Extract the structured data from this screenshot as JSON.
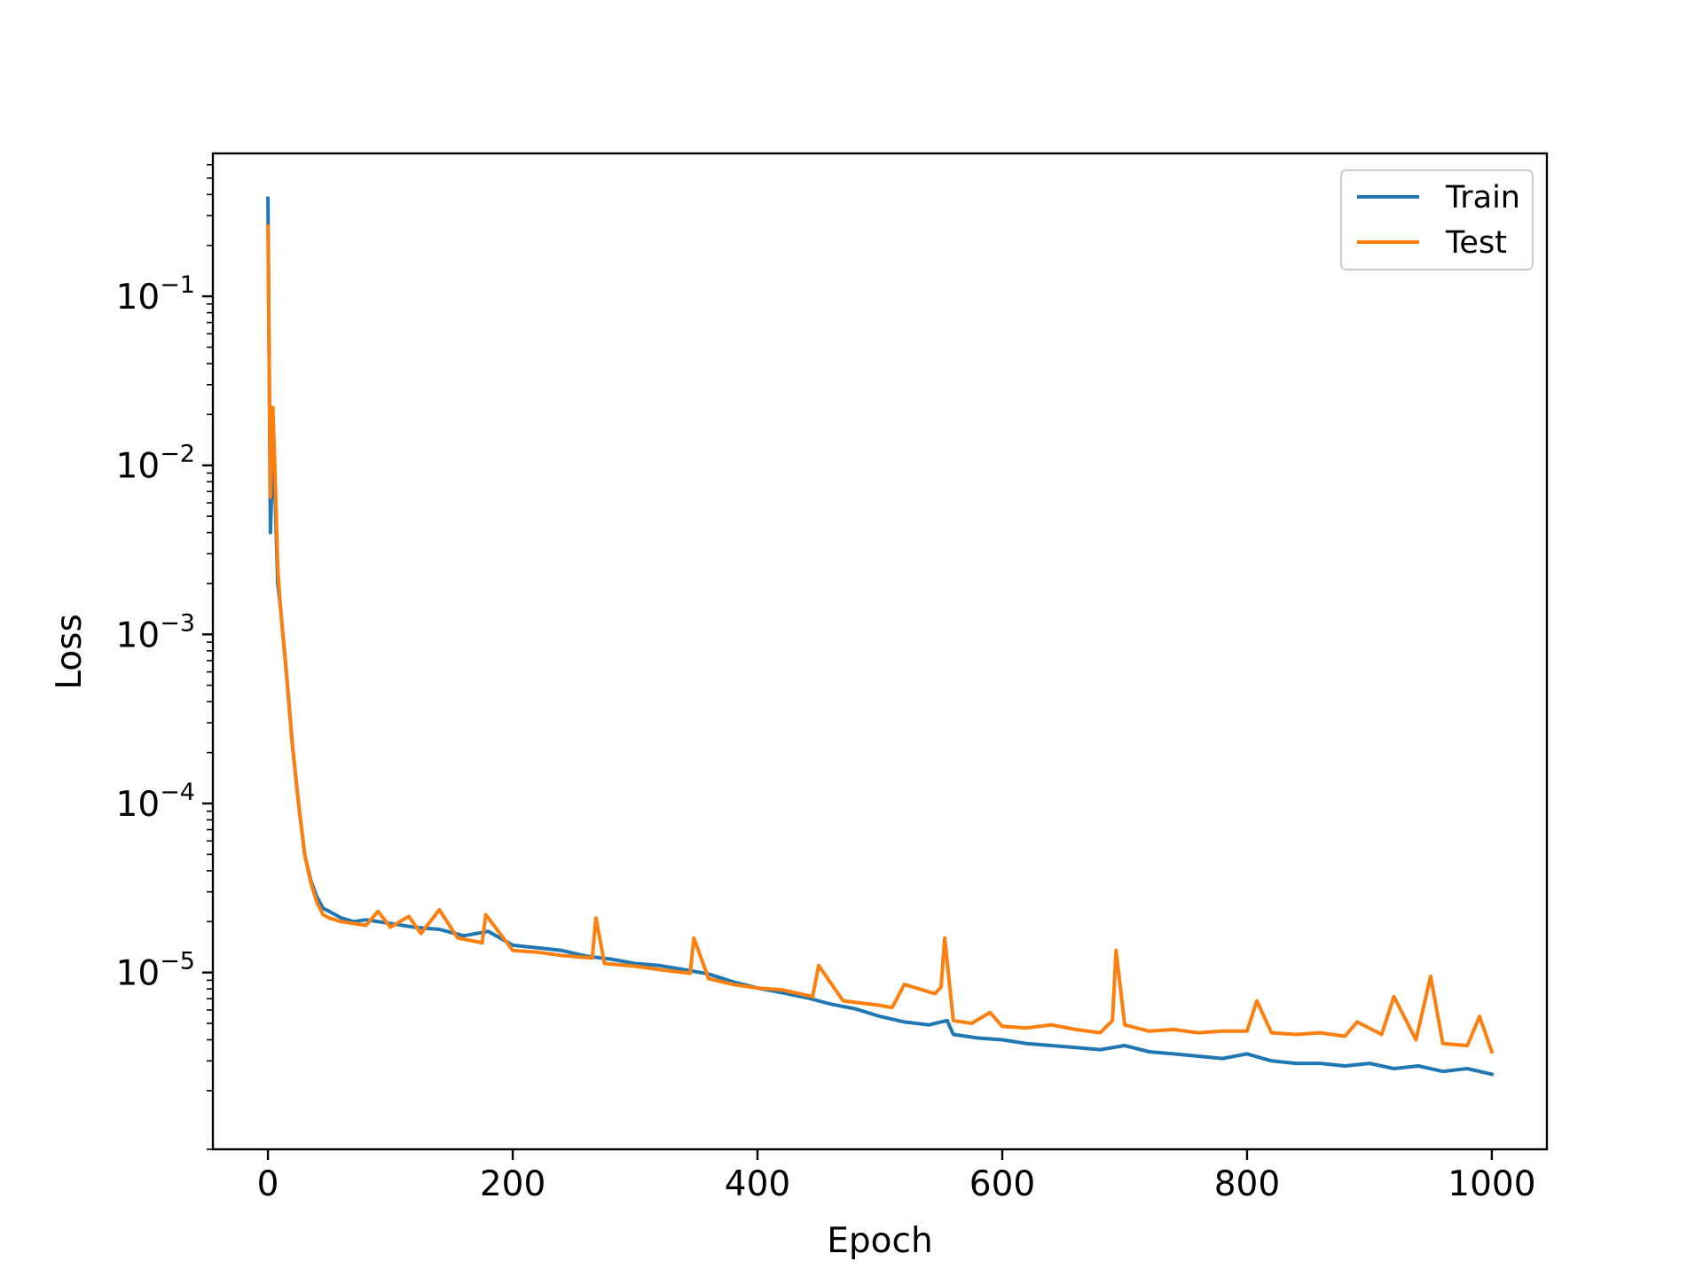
{
  "chart_data": {
    "type": "line",
    "xlabel": "Epoch",
    "ylabel": "Loss",
    "yscale": "log",
    "xlim": [
      -45,
      1045
    ],
    "ylim": [
      9e-07,
      0.7
    ],
    "grid": false,
    "legend_position": "top-right",
    "x_ticks": [
      0,
      200,
      400,
      600,
      800,
      1000
    ],
    "y_ticks": [
      {
        "value": 1e-05,
        "base": "10",
        "exponent": "−5"
      },
      {
        "value": 0.0001,
        "base": "10",
        "exponent": "−4"
      },
      {
        "value": 0.001,
        "base": "10",
        "exponent": "−3"
      },
      {
        "value": 0.01,
        "base": "10",
        "exponent": "−2"
      },
      {
        "value": 0.1,
        "base": "10",
        "exponent": "−1"
      }
    ],
    "series": [
      {
        "name": "Train",
        "color": "#1f77b4",
        "x": [
          0,
          2,
          4,
          6,
          8,
          10,
          15,
          20,
          25,
          30,
          35,
          40,
          45,
          50,
          60,
          70,
          80,
          100,
          120,
          140,
          160,
          180,
          200,
          220,
          240,
          260,
          280,
          300,
          320,
          340,
          360,
          380,
          400,
          420,
          440,
          460,
          480,
          500,
          520,
          540,
          555,
          560,
          580,
          600,
          620,
          640,
          660,
          680,
          700,
          720,
          740,
          760,
          780,
          800,
          820,
          840,
          860,
          880,
          900,
          920,
          940,
          960,
          980,
          1000
        ],
        "y": [
          0.38,
          0.004,
          0.012,
          0.006,
          0.002,
          0.0015,
          0.0006,
          0.00022,
          0.0001,
          5e-05,
          3.5e-05,
          2.8e-05,
          2.4e-05,
          2.3e-05,
          2.1e-05,
          2e-05,
          2.05e-05,
          1.95e-05,
          1.85e-05,
          1.8e-05,
          1.65e-05,
          1.75e-05,
          1.45e-05,
          1.4e-05,
          1.35e-05,
          1.25e-05,
          1.2e-05,
          1.13e-05,
          1.1e-05,
          1.04e-05,
          9.8e-06,
          8.8e-06,
          8.1e-06,
          7.6e-06,
          7.1e-06,
          6.5e-06,
          6.1e-06,
          5.5e-06,
          5.1e-06,
          4.9e-06,
          5.2e-06,
          4.3e-06,
          4.1e-06,
          4e-06,
          3.8e-06,
          3.7e-06,
          3.6e-06,
          3.5e-06,
          3.7e-06,
          3.4e-06,
          3.3e-06,
          3.2e-06,
          3.1e-06,
          3.3e-06,
          3e-06,
          2.9e-06,
          2.9e-06,
          2.8e-06,
          2.9e-06,
          2.7e-06,
          2.8e-06,
          2.6e-06,
          2.7e-06,
          2.5e-06
        ]
      },
      {
        "name": "Test",
        "color": "#ff7f0e",
        "x": [
          0,
          2,
          4,
          6,
          8,
          10,
          15,
          20,
          25,
          30,
          35,
          40,
          45,
          50,
          60,
          70,
          80,
          90,
          100,
          115,
          125,
          140,
          155,
          175,
          178,
          200,
          220,
          240,
          265,
          268,
          275,
          300,
          320,
          345,
          348,
          360,
          380,
          400,
          420,
          445,
          450,
          470,
          500,
          510,
          520,
          545,
          550,
          553,
          560,
          575,
          590,
          600,
          620,
          640,
          660,
          680,
          690,
          693,
          700,
          720,
          740,
          760,
          780,
          800,
          808,
          820,
          840,
          860,
          880,
          890,
          910,
          920,
          938,
          950,
          960,
          980,
          990,
          1000
        ],
        "y": [
          0.26,
          0.0065,
          0.022,
          0.008,
          0.0025,
          0.0015,
          0.0006,
          0.00022,
          0.0001,
          5e-05,
          3.4e-05,
          2.6e-05,
          2.2e-05,
          2.1e-05,
          2e-05,
          1.95e-05,
          1.9e-05,
          2.3e-05,
          1.85e-05,
          2.15e-05,
          1.7e-05,
          2.35e-05,
          1.6e-05,
          1.5e-05,
          2.2e-05,
          1.35e-05,
          1.32e-05,
          1.26e-05,
          1.22e-05,
          2.1e-05,
          1.13e-05,
          1.09e-05,
          1.04e-05,
          9.9e-06,
          1.6e-05,
          9.2e-06,
          8.5e-06,
          8.1e-06,
          7.9e-06,
          7.2e-06,
          1.1e-05,
          6.8e-06,
          6.4e-06,
          6.2e-06,
          8.5e-06,
          7.5e-06,
          8.2e-06,
          1.6e-05,
          5.2e-06,
          5e-06,
          5.8e-06,
          4.8e-06,
          4.7e-06,
          4.9e-06,
          4.6e-06,
          4.4e-06,
          5.2e-06,
          1.35e-05,
          4.9e-06,
          4.5e-06,
          4.6e-06,
          4.4e-06,
          4.5e-06,
          4.5e-06,
          6.8e-06,
          4.4e-06,
          4.3e-06,
          4.4e-06,
          4.2e-06,
          5.1e-06,
          4.3e-06,
          7.2e-06,
          4e-06,
          9.5e-06,
          3.8e-06,
          3.7e-06,
          5.5e-06,
          3.4e-06
        ]
      }
    ]
  }
}
